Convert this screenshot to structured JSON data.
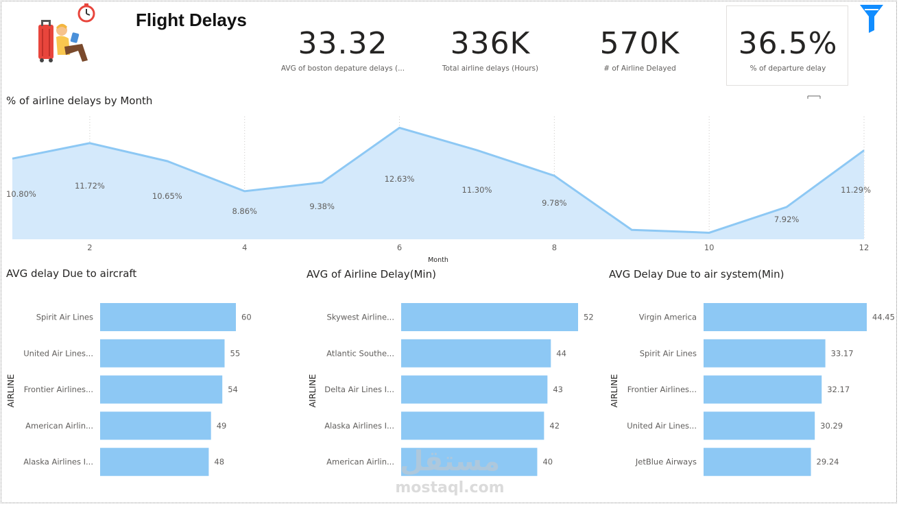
{
  "header": {
    "title": "Flight Delays"
  },
  "kpis": [
    {
      "value": "33.32",
      "label": "AVG of boston depature delays (..."
    },
    {
      "value": "336K",
      "label": "Total airline delays (Hours)"
    },
    {
      "value": "570K",
      "label": "# of Airline Delayed"
    },
    {
      "value": "36.5%",
      "label": "% of departure delay"
    }
  ],
  "watermark": {
    "arabic": "مستقل",
    "latin": "mostaql.com"
  },
  "colors": {
    "bar": "#8dc8f4",
    "line": "#8dc8f4",
    "area": "#d4e9fb",
    "filter": "#118dff"
  },
  "icons": {
    "logo": "traveler-icon",
    "filter": "filter-icon"
  },
  "chart_data": [
    {
      "type": "area",
      "title": "% of airline delays by Month",
      "xlabel": "Month",
      "ylabel": "",
      "x": [
        1,
        2,
        3,
        4,
        5,
        6,
        7,
        8,
        9,
        10,
        11,
        12
      ],
      "values": [
        10.8,
        11.72,
        10.65,
        8.86,
        9.38,
        12.63,
        11.3,
        9.78,
        6.56,
        6.39,
        7.92,
        11.29
      ],
      "data_labels": [
        "10.80%",
        "11.72%",
        "10.65%",
        "8.86%",
        "9.38%",
        "12.63%",
        "11.30%",
        "9.78%",
        "",
        "",
        "7.92%",
        "11.29%"
      ],
      "xticks": [
        "2",
        "4",
        "6",
        "8",
        "10",
        "12"
      ],
      "xlim": [
        1,
        12
      ],
      "ylim": [
        6,
        13.3
      ]
    },
    {
      "type": "bar",
      "orientation": "horizontal",
      "title": "AVG delay Due to aircraft",
      "ylabel": "AIRLINE",
      "categories": [
        "Spirit Air Lines",
        "United Air Lines...",
        "Frontier Airlines...",
        "American Airlin...",
        "Alaska Airlines I..."
      ],
      "values": [
        60,
        55,
        54,
        49,
        48
      ],
      "value_labels": [
        "60",
        "55",
        "54",
        "49",
        "48"
      ],
      "xlim": [
        0,
        60
      ]
    },
    {
      "type": "bar",
      "orientation": "horizontal",
      "title": "AVG of Airline Delay(Min)",
      "ylabel": "AIRLINE",
      "categories": [
        "Skywest Airline...",
        "Atlantic Southe...",
        "Delta Air Lines I...",
        "Alaska Airlines I...",
        "American Airlin..."
      ],
      "values": [
        52,
        44,
        43,
        42,
        40
      ],
      "value_labels": [
        "52",
        "44",
        "43",
        "42",
        "40"
      ],
      "xlim": [
        0,
        52
      ]
    },
    {
      "type": "bar",
      "orientation": "horizontal",
      "title": "AVG Delay Due to air system(Min)",
      "ylabel": "AIRLINE",
      "categories": [
        "Virgin America",
        "Spirit Air Lines",
        "Frontier Airlines...",
        "United Air Lines...",
        "JetBlue Airways"
      ],
      "values": [
        44.45,
        33.17,
        32.17,
        30.29,
        29.24
      ],
      "value_labels": [
        "44.45",
        "33.17",
        "32.17",
        "30.29",
        "29.24"
      ],
      "xlim": [
        0,
        44.45
      ]
    }
  ]
}
